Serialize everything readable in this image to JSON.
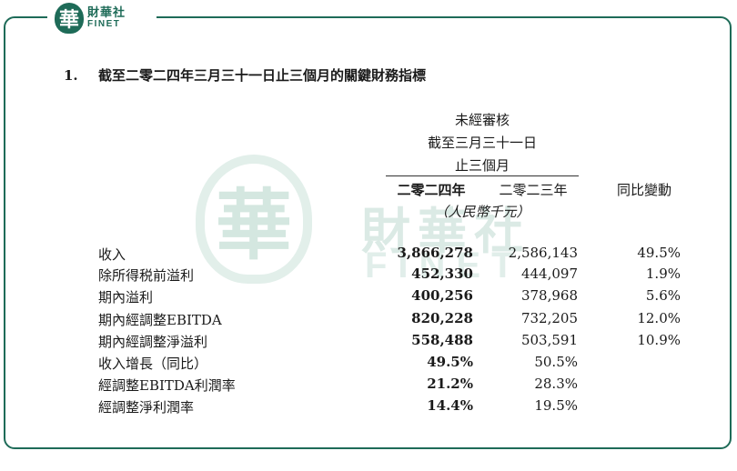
{
  "logo": {
    "cn": "財華社",
    "en": "FINET",
    "mark": "華"
  },
  "watermark": {
    "mark": "華",
    "cn": "財華社",
    "en": "FINET"
  },
  "section": {
    "number": "1.",
    "title": "截至二零二四年三月三十一日止三個月的關鍵財務指標"
  },
  "header": {
    "line1": "未經審核",
    "line2": "截至三月三十一日",
    "line3": "止三個月",
    "col_2024": "二零二四年",
    "col_2023": "二零二三年",
    "col_change": "同比變動",
    "unit": "（人民幣千元）"
  },
  "rows": [
    {
      "label": "收入",
      "v2024": "3,866,278",
      "v2023": "2,586,143",
      "change": "49.5%"
    },
    {
      "label": "除所得税前溢利",
      "v2024": "452,330",
      "v2023": "444,097",
      "change": "1.9%"
    },
    {
      "label": "期內溢利",
      "v2024": "400,256",
      "v2023": "378,968",
      "change": "5.6%"
    },
    {
      "label": "期內經調整EBITDA",
      "v2024": "820,228",
      "v2023": "732,205",
      "change": "12.0%"
    },
    {
      "label": "期內經調整淨溢利",
      "v2024": "558,488",
      "v2023": "503,591",
      "change": "10.9%"
    },
    {
      "label": "收入增長（同比）",
      "v2024": "49.5%",
      "v2023": "50.5%",
      "change": ""
    },
    {
      "label": "經調整EBITDA利潤率",
      "v2024": "21.2%",
      "v2023": "28.3%",
      "change": ""
    },
    {
      "label": "經調整淨利潤率",
      "v2024": "14.4%",
      "v2023": "19.5%",
      "change": ""
    }
  ],
  "colors": {
    "brand": "#1e6b58"
  }
}
